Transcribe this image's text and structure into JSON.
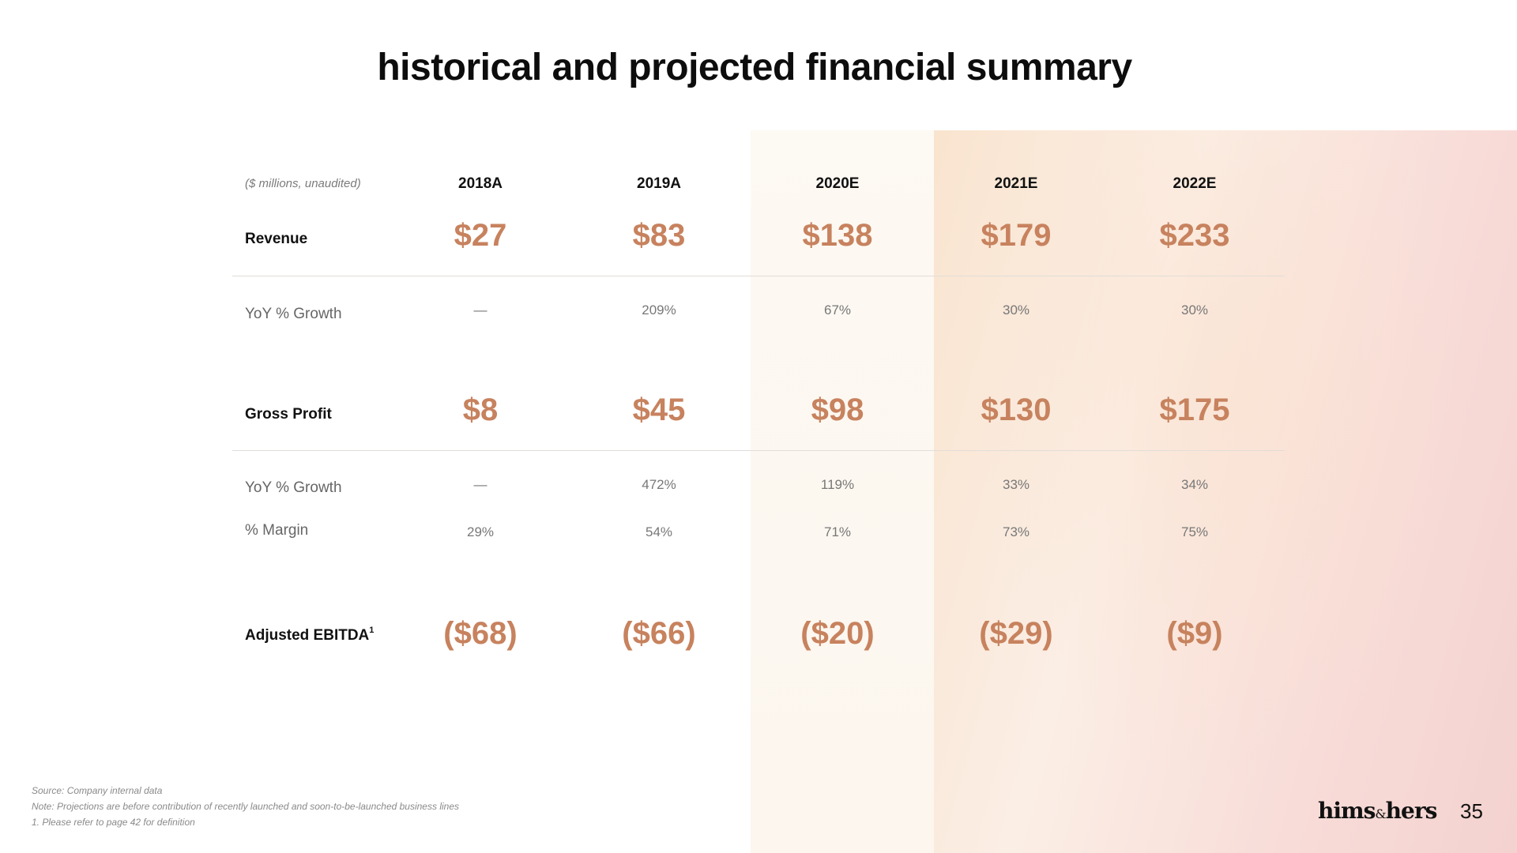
{
  "title": "historical and projected financial summary",
  "units": "($ millions, unaudited)",
  "years": [
    "2018A",
    "2019A",
    "2020E",
    "2021E",
    "2022E"
  ],
  "rows": {
    "revenue": {
      "label": "Revenue",
      "values": [
        "$27",
        "$83",
        "$138",
        "$179",
        "$233"
      ]
    },
    "revenue_growth": {
      "label": "YoY % Growth",
      "values": [
        "—",
        "209%",
        "67%",
        "30%",
        "30%"
      ]
    },
    "gross_profit": {
      "label": "Gross Profit",
      "values": [
        "$8",
        "$45",
        "$98",
        "$130",
        "$175"
      ]
    },
    "gp_growth": {
      "label": "YoY % Growth",
      "values": [
        "—",
        "472%",
        "119%",
        "33%",
        "34%"
      ]
    },
    "margin": {
      "label": "% Margin",
      "values": [
        "29%",
        "54%",
        "71%",
        "73%",
        "75%"
      ]
    },
    "ebitda": {
      "label": "Adjusted EBITDA",
      "footnote_mark": "1",
      "values": [
        "($68)",
        "($66)",
        "($20)",
        "($29)",
        "($9)"
      ]
    }
  },
  "footnotes": {
    "source": "Source: Company internal data",
    "note": "Note: Projections are before contribution of recently launched and soon-to-be-launched business lines",
    "one": "1. Please refer to page 42 for definition"
  },
  "logo": {
    "left": "hims",
    "amp": "&",
    "right": "hers"
  },
  "page_number": "35",
  "colors": {
    "accent": "#c7825e",
    "projection_tint": "#f9e4cf"
  }
}
